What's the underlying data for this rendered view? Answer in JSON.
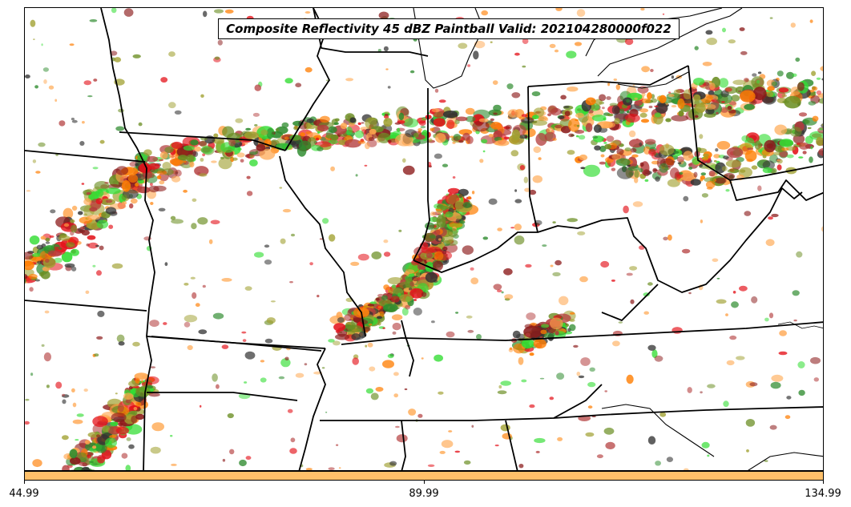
{
  "title": "Composite Reflectivity 45 dBZ Paintball Valid: 202104280000f022",
  "colorbar": {
    "color": "#ffc06a",
    "tick_labels": [
      "44.99",
      "89.99",
      "134.99"
    ]
  },
  "paintball_colors": [
    "#e4131b",
    "#ff7d00",
    "#ffa64d",
    "#2e8b2e",
    "#33dd33",
    "#8b1a1a",
    "#a0a030",
    "#333333",
    "#b33c3c",
    "#6b8e23"
  ],
  "map_layers": [
    "state-boundaries",
    "great-lakes-shoreline",
    "coastline"
  ]
}
